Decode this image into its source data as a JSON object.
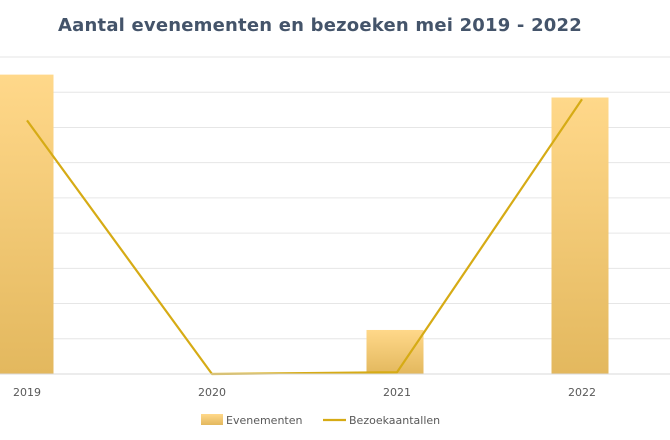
{
  "chart_data": {
    "type": "bar",
    "title": "Aantal evenementen en bezoeken mei 2019 - 2022",
    "categories": [
      "2019",
      "2020",
      "2021",
      "2022"
    ],
    "series": [
      {
        "name": "Evenementen",
        "type": "bar",
        "values": [
          85,
          0,
          12.5,
          78.5
        ]
      },
      {
        "name": "Bezoekaantallen",
        "type": "line",
        "values": [
          72,
          0,
          0.5,
          78
        ]
      }
    ],
    "ylim": [
      0,
      90
    ],
    "grid": true,
    "legend": "bottom",
    "colors": {
      "bar_top": "#ffd88a",
      "bar_bottom": "#e3b85e",
      "line": "#d6ab15",
      "grid": "#e6e6e6",
      "axis": "#d9d9d9",
      "title": "#44546a"
    }
  }
}
